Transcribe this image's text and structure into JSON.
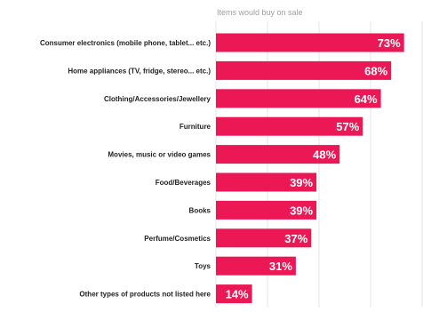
{
  "chart_data": {
    "type": "bar",
    "orientation": "horizontal",
    "title": "Items would buy on sale",
    "xlabel": "",
    "ylabel": "",
    "xlim": [
      0,
      80
    ],
    "grid": true,
    "legend": "none",
    "bar_color": "#ec1755",
    "value_suffix": "%",
    "categories": [
      "Consumer electronics (mobile phone, tablet... etc.)",
      "Home appliances (TV, fridge, stereo... etc.)",
      "Clothing/Accessories/Jewellery",
      "Furniture",
      "Movies, music or video games",
      "Food/Beverages",
      "Books",
      "Perfume/Cosmetics",
      "Toys",
      "Other types of products not listed here"
    ],
    "values": [
      73,
      68,
      64,
      57,
      48,
      39,
      39,
      37,
      31,
      14
    ]
  }
}
